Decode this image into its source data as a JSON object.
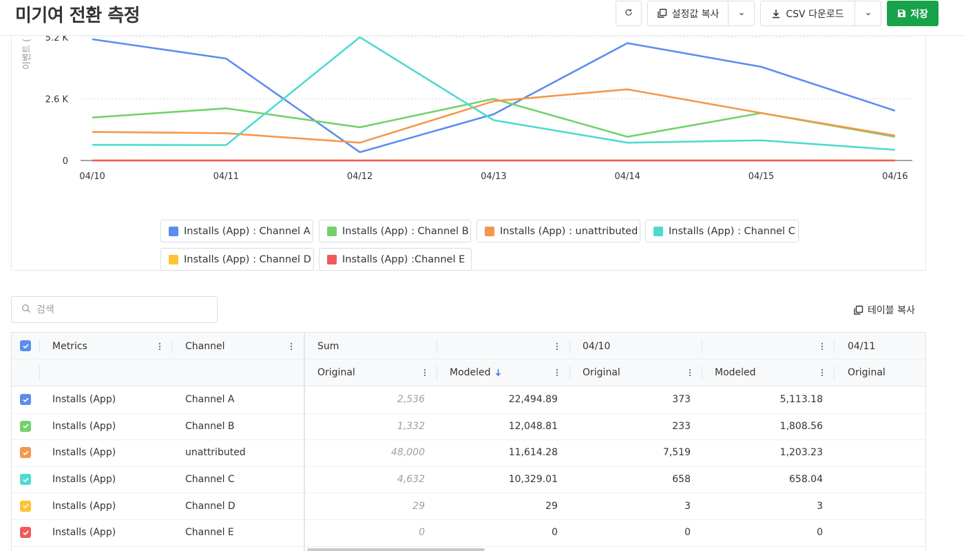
{
  "header": {
    "title": "미기여 전환 측정",
    "refresh_icon": "refresh-icon",
    "copy_settings_label": "설정값 복사",
    "csv_download_label": "CSV 다운로드",
    "save_label": "저장"
  },
  "chart_data": {
    "type": "line",
    "ylabel": "이벤트 (",
    "x": [
      "04/10",
      "04/11",
      "04/12",
      "04/13",
      "04/14",
      "04/15",
      "04/16"
    ],
    "y_ticks": [
      "0",
      "2.6 K",
      "5.2 K"
    ],
    "ylim": [
      0,
      5200
    ],
    "grid": true,
    "series": [
      {
        "name": "Installs (App) : Channel A",
        "color": "#5b8def",
        "values": [
          5113,
          4300,
          350,
          1950,
          4950,
          3950,
          2100
        ]
      },
      {
        "name": "Installs (App) : Channel B",
        "color": "#72d26a",
        "values": [
          1809,
          2200,
          1400,
          2600,
          1000,
          2000,
          1000
        ]
      },
      {
        "name": "Installs (App) : unattributed",
        "color": "#f5974a",
        "values": [
          1203,
          1150,
          750,
          2500,
          3000,
          2000,
          1050
        ]
      },
      {
        "name": "Installs (App) : Channel C",
        "color": "#4ddbd0",
        "values": [
          658,
          650,
          5200,
          1700,
          750,
          850,
          450
        ]
      },
      {
        "name": "Installs (App) : Channel D",
        "color": "#ffc233",
        "values": [
          3,
          3,
          3,
          3,
          3,
          3,
          3
        ]
      },
      {
        "name": "Installs (App) :Channel E",
        "color": "#f05a5a",
        "values": [
          0,
          0,
          0,
          0,
          0,
          0,
          0
        ]
      }
    ]
  },
  "search": {
    "placeholder": "검색",
    "value": ""
  },
  "copy_table_label": "테이블 복사",
  "table": {
    "col_metrics": "Metrics",
    "col_channel": "Channel",
    "group_sum": "Sum",
    "group_0410": "04/10",
    "group_0411": "04/11",
    "sub_original": "Original",
    "sub_modeled": "Modeled",
    "sort_icon": "arrow-down-icon",
    "rows": [
      {
        "metric": "Installs (App)",
        "channel": "Channel A",
        "sum_original": "2,536",
        "sum_modeled": "22,494.89",
        "d0410_original": "373",
        "d0410_modeled": "5,113.18",
        "color": "#5b8def"
      },
      {
        "metric": "Installs (App)",
        "channel": "Channel B",
        "sum_original": "1,332",
        "sum_modeled": "12,048.81",
        "d0410_original": "233",
        "d0410_modeled": "1,808.56",
        "color": "#72d26a"
      },
      {
        "metric": "Installs (App)",
        "channel": "unattributed",
        "sum_original": "48,000",
        "sum_modeled": "11,614.28",
        "d0410_original": "7,519",
        "d0410_modeled": "1,203.23",
        "color": "#f5974a"
      },
      {
        "metric": "Installs (App)",
        "channel": "Channel C",
        "sum_original": "4,632",
        "sum_modeled": "10,329.01",
        "d0410_original": "658",
        "d0410_modeled": "658.04",
        "color": "#4ddbd0"
      },
      {
        "metric": "Installs (App)",
        "channel": "Channel D",
        "sum_original": "29",
        "sum_modeled": "29",
        "d0410_original": "3",
        "d0410_modeled": "3",
        "color": "#ffc233"
      },
      {
        "metric": "Installs (App)",
        "channel": "Channel E",
        "sum_original": "0",
        "sum_modeled": "0",
        "d0410_original": "0",
        "d0410_modeled": "0",
        "color": "#f05a5a"
      }
    ]
  },
  "colors": {
    "accent": "#17a34a",
    "header_checkbox": "#5b8def"
  }
}
